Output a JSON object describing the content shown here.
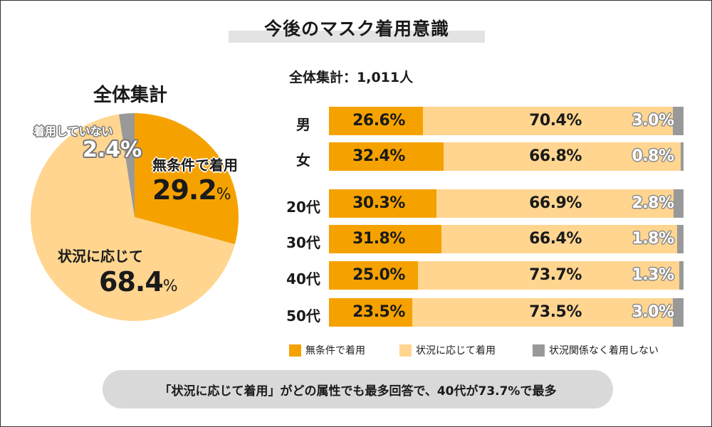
{
  "title": "今後のマスク着用意識",
  "pie": {
    "title": "全体集計",
    "slices": [
      {
        "name": "無条件で着用",
        "value": 29.2,
        "color": "#f5a200"
      },
      {
        "name": "状況に応じて",
        "value": 68.4,
        "color": "#ffd590"
      },
      {
        "name": "着用していない",
        "value": 2.4,
        "color": "#999999"
      }
    ],
    "labels": {
      "uncond_name": "無条件で着用",
      "uncond_value": "29.2",
      "uncond_pct": "%",
      "cond_name": "状況に応じて",
      "cond_value": "68.4",
      "cond_pct": "%",
      "none_name": "着用していない",
      "none_value": "2.4%"
    }
  },
  "bars_total_label": "全体集計：1,011人",
  "chart_data": {
    "type": "bar",
    "stacked": true,
    "orientation": "horizontal",
    "title": "今後のマスク着用意識",
    "categories": [
      "男",
      "女",
      "20代",
      "30代",
      "40代",
      "50代"
    ],
    "series": [
      {
        "name": "無条件で着用",
        "color": "#f5a200",
        "values": [
          26.6,
          32.4,
          30.3,
          31.8,
          25.0,
          23.5
        ],
        "labels": [
          "26.6%",
          "32.4%",
          "30.3%",
          "31.8%",
          "25.0%",
          "23.5%"
        ]
      },
      {
        "name": "状況に応じて着用",
        "color": "#ffd590",
        "values": [
          70.4,
          66.8,
          66.9,
          66.4,
          73.7,
          73.5
        ],
        "labels": [
          "70.4%",
          "66.8%",
          "66.9%",
          "66.4%",
          "73.7%",
          "73.5%"
        ]
      },
      {
        "name": "状況関係なく着用しない",
        "color": "#999999",
        "values": [
          3.0,
          0.8,
          2.8,
          1.8,
          1.3,
          3.0
        ],
        "labels": [
          "3.0%",
          "0.8%",
          "2.8%",
          "1.8%",
          "1.3%",
          "3.0%"
        ]
      }
    ],
    "xlim": [
      0,
      100
    ],
    "unit": "%"
  },
  "legend": [
    "無条件で着用",
    "状況に応じて着用",
    "状況関係なく着用しない"
  ],
  "note": "「状況に応じて着用」がどの属性でも最多回答で、40代が73.7%で最多"
}
